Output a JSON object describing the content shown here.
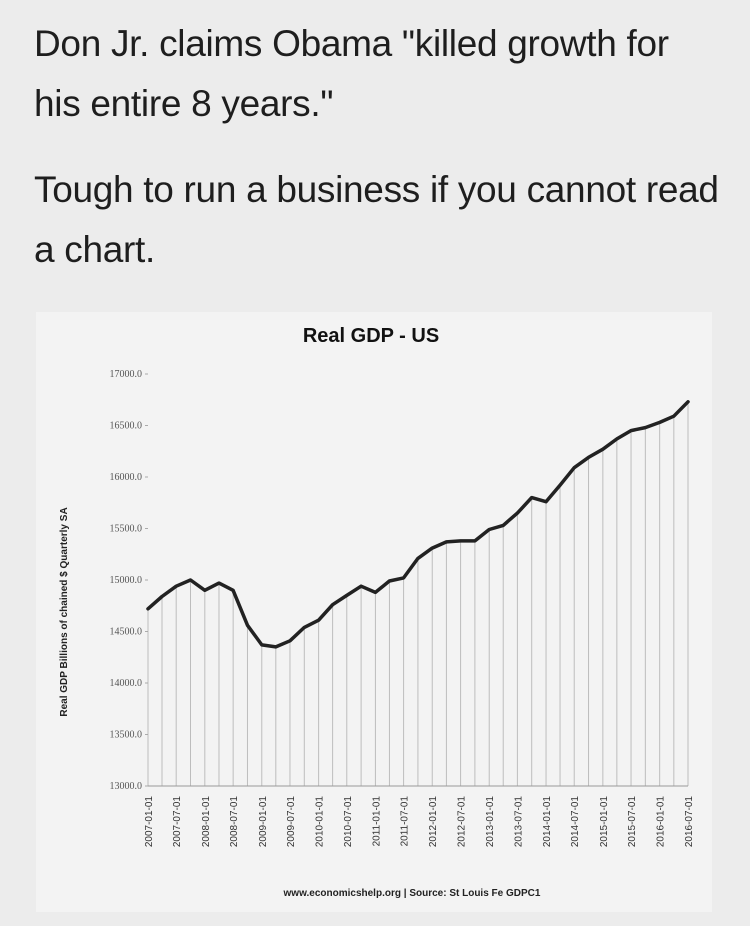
{
  "caption": {
    "line1": "Don Jr. claims Obama \"killed growth for his entire 8 years.\"",
    "line2": "Tough to run a business if you cannot read a chart."
  },
  "colors": {
    "background": "#ececec",
    "chart_background": "#f3f3f3",
    "line": "#222222",
    "grid": "#bdbdbd"
  },
  "chart_data": {
    "type": "line",
    "title": "Real GDP - US",
    "ylabel": "Real GDP  Billions of chained $ Quarterly SA",
    "xlabel": "",
    "source": "www.economicshelp.org | Source: St Louis Fe GDPC1",
    "ylim": [
      13000,
      17000
    ],
    "yticks": [
      "13000.0",
      "13500.0",
      "14000.0",
      "14500.0",
      "15000.0",
      "15500.0",
      "16000.0",
      "16500.0",
      "17000.0"
    ],
    "xticks": [
      "2007-01-01",
      "2007-07-01",
      "2008-01-01",
      "2008-07-01",
      "2009-01-01",
      "2009-07-01",
      "2010-01-01",
      "2010-07-01",
      "2011-01-01",
      "2011-07-01",
      "2012-01-01",
      "2012-07-01",
      "2013-01-01",
      "2013-07-01",
      "2014-01-01",
      "2014-07-01",
      "2015-01-01",
      "2015-07-01",
      "2016-01-01",
      "2016-07-01"
    ],
    "grid": "vertical",
    "series": [
      {
        "x": [
          "2007-01-01",
          "2007-04-01",
          "2007-07-01",
          "2007-10-01",
          "2008-01-01",
          "2008-04-01",
          "2008-07-01",
          "2008-10-01",
          "2009-01-01",
          "2009-04-01",
          "2009-07-01",
          "2009-10-01",
          "2010-01-01",
          "2010-04-01",
          "2010-07-01",
          "2010-10-01",
          "2011-01-01",
          "2011-04-01",
          "2011-07-01",
          "2011-10-01",
          "2012-01-01",
          "2012-04-01",
          "2012-07-01",
          "2012-10-01",
          "2013-01-01",
          "2013-04-01",
          "2013-07-01",
          "2013-10-01",
          "2014-01-01",
          "2014-04-01",
          "2014-07-01",
          "2014-10-01",
          "2015-01-01",
          "2015-04-01",
          "2015-07-01",
          "2015-10-01",
          "2016-01-01",
          "2016-04-01",
          "2016-07-01"
        ],
        "values": [
          14720,
          14840,
          14940,
          15000,
          14900,
          14970,
          14900,
          14560,
          14370,
          14350,
          14410,
          14540,
          14610,
          14760,
          14850,
          14940,
          14880,
          14990,
          15020,
          15210,
          15310,
          15370,
          15380,
          15380,
          15490,
          15530,
          15650,
          15800,
          15760,
          15920,
          16090,
          16190,
          16270,
          16370,
          16450,
          16480,
          16530,
          16590,
          16730
        ]
      }
    ]
  }
}
